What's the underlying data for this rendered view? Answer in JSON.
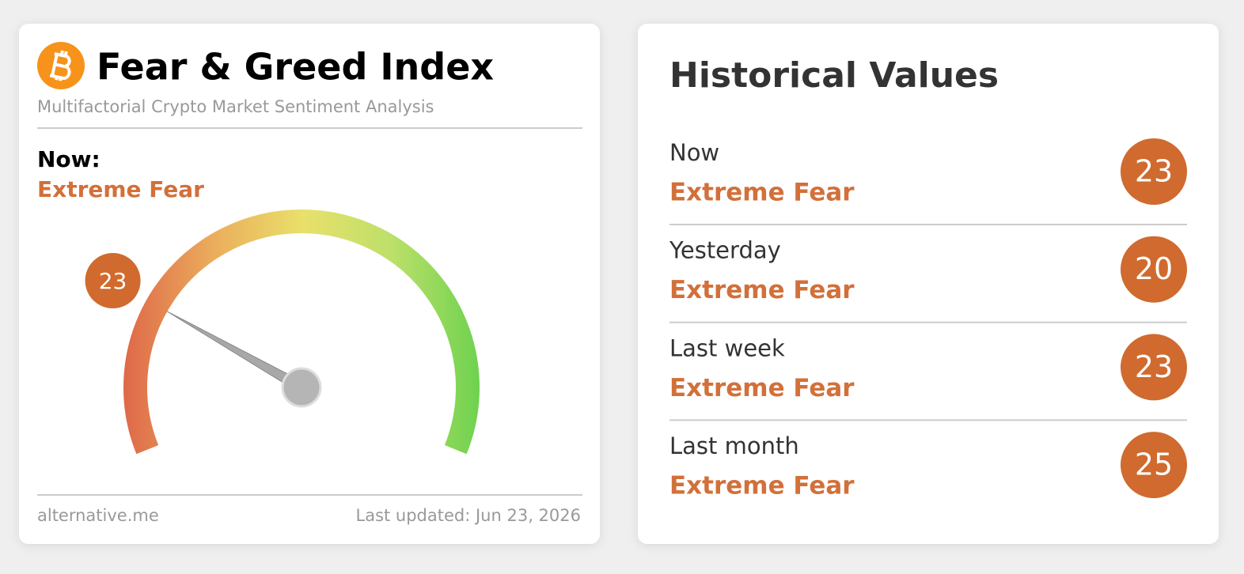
{
  "header": {
    "title": "Fear & Greed Index",
    "subtitle": "Multifactorial Crypto Market Sentiment Analysis"
  },
  "now": {
    "label": "Now:",
    "classification": "Extreme Fear"
  },
  "gauge": {
    "value": 23,
    "lim": [
      0,
      100
    ]
  },
  "footer": {
    "source": "alternative.me",
    "updated": "Last updated: Jun 23, 2026"
  },
  "history": {
    "title": "Historical Values",
    "rows": [
      {
        "label": "Now",
        "classification": "Extreme Fear",
        "value": 23
      },
      {
        "label": "Yesterday",
        "classification": "Extreme Fear",
        "value": 20
      },
      {
        "label": "Last week",
        "classification": "Extreme Fear",
        "value": 23
      },
      {
        "label": "Last month",
        "classification": "Extreme Fear",
        "value": 25
      }
    ]
  }
}
